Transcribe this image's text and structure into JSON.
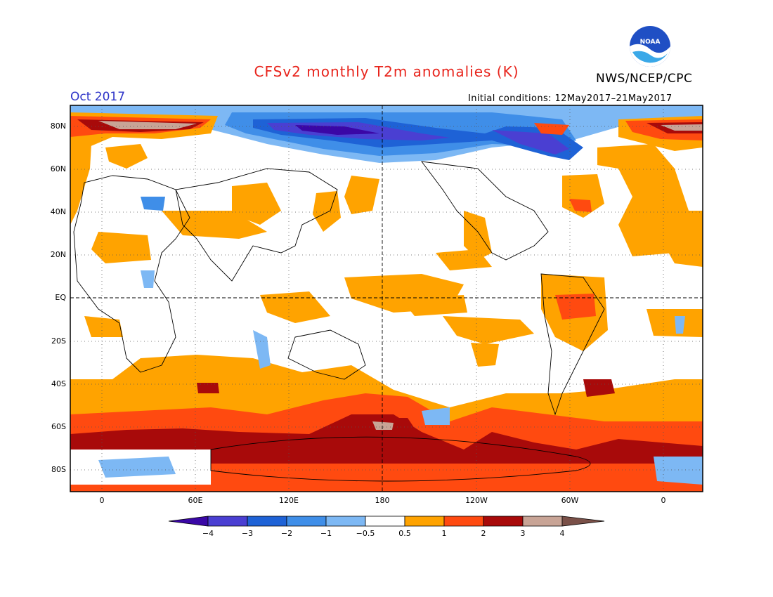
{
  "header": {
    "title": "CFSv2 monthly T2m anomalies (K)",
    "agency": "NWS/NCEP/CPC",
    "valid_month": "Oct 2017",
    "initial_conditions": "Initial conditions: 12May2017–21May2017",
    "logo_text": "NOAA"
  },
  "map": {
    "lat_labels": [
      "80N",
      "60N",
      "40N",
      "20N",
      "EQ",
      "20S",
      "40S",
      "60S",
      "80S"
    ],
    "lon_labels": [
      "0",
      "60E",
      "120E",
      "180",
      "120W",
      "60W",
      "0"
    ],
    "lat_range": [
      -90,
      90
    ],
    "lon_range": [
      -20,
      380
    ]
  },
  "colorbar": {
    "labels": [
      "−4",
      "−3",
      "−2",
      "−1",
      "−0.5",
      "0.5",
      "1",
      "2",
      "3",
      "4"
    ],
    "colors": [
      "#3a07a6",
      "#4a3fd2",
      "#1e62d6",
      "#3f8ee8",
      "#7db8f4",
      "#ffffff",
      "#ffa300",
      "#ff4a10",
      "#a80a0a",
      "#c8a496",
      "#7a5048"
    ]
  }
}
